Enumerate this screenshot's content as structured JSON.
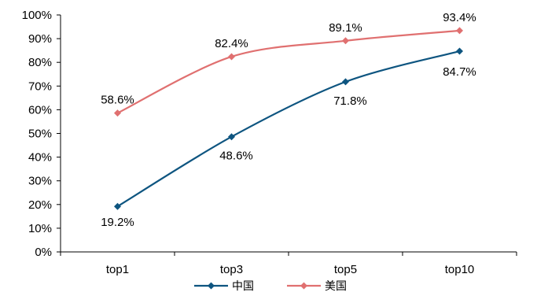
{
  "chart_data": {
    "type": "line",
    "categories": [
      "top1",
      "top3",
      "top5",
      "top10"
    ],
    "series": [
      {
        "name": "中国",
        "values": [
          19.2,
          48.6,
          71.8,
          84.7
        ],
        "color": "#0e5580",
        "labels": [
          "19.2%",
          "48.6%",
          "71.8%",
          "84.7%"
        ]
      },
      {
        "name": "美国",
        "values": [
          58.6,
          82.4,
          89.1,
          93.4
        ],
        "color": "#e07070",
        "labels": [
          "58.6%",
          "82.4%",
          "89.1%",
          "93.4%"
        ]
      }
    ],
    "ylim": [
      0,
      100
    ],
    "yticks": [
      "0%",
      "10%",
      "20%",
      "30%",
      "40%",
      "50%",
      "60%",
      "70%",
      "80%",
      "90%",
      "100%"
    ],
    "legend": "bottom",
    "grid": false,
    "smooth": true
  }
}
